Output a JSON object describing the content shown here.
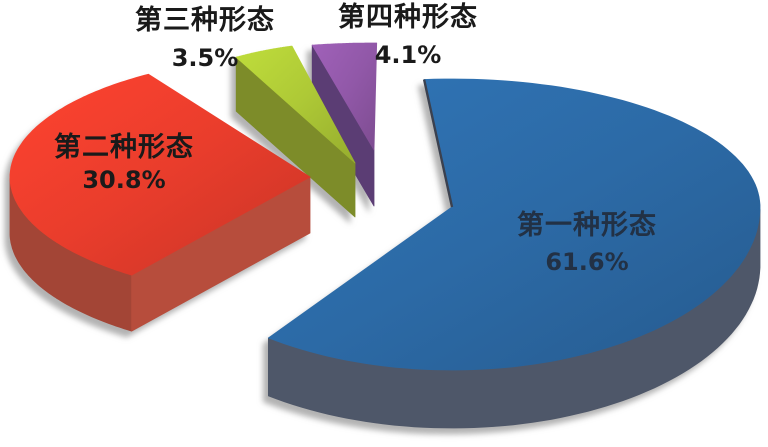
{
  "chart_data": {
    "type": "pie",
    "style": "3d-exploded-pie",
    "background": "#ffffff",
    "unit": "%",
    "legend": "none",
    "slices": [
      {
        "label": "第一种形态",
        "value": 61.6,
        "display": "61.6%",
        "color": "#2c6aa6",
        "side_color": "#4e5769"
      },
      {
        "label": "第二种形态",
        "value": 30.8,
        "display": "30.8%",
        "color": "#e93d2c",
        "side_color": "#a34536"
      },
      {
        "label": "第三种形态",
        "value": 3.5,
        "display": "3.5%",
        "color": "#aec936",
        "side_color": "#7d8c29"
      },
      {
        "label": "第四种形态",
        "value": 4.1,
        "display": "4.1%",
        "color": "#9158a8",
        "side_color": "#5b3d74"
      }
    ]
  }
}
